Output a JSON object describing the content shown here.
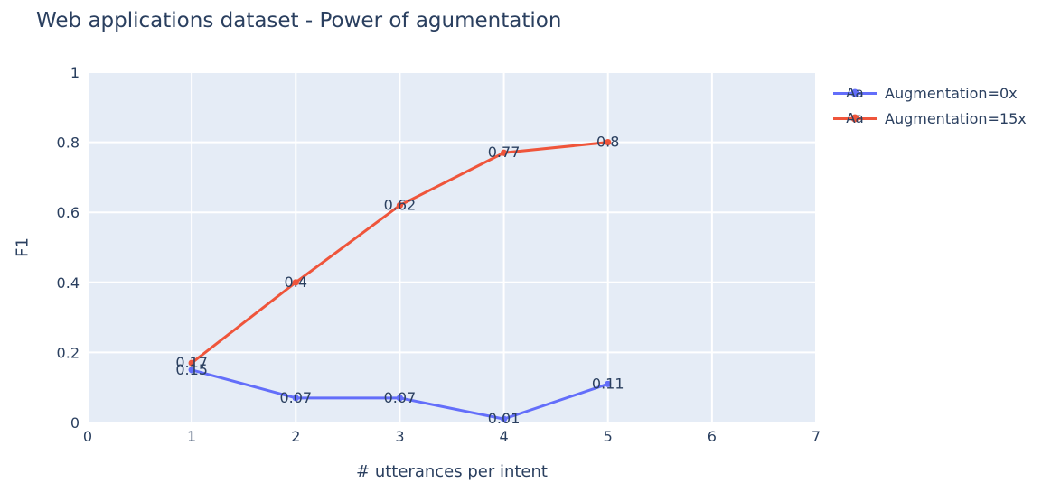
{
  "chart_data": {
    "type": "line",
    "title": "Web applications dataset - Power of agumentation",
    "xlabel": "# utterances per intent",
    "ylabel": "F1",
    "xlim": [
      0,
      7
    ],
    "ylim": [
      0,
      1
    ],
    "xtick_values": [
      0,
      1,
      2,
      3,
      4,
      5,
      6,
      7
    ],
    "xtick_labels": [
      "0",
      "1",
      "2",
      "3",
      "4",
      "5",
      "6",
      "7"
    ],
    "ytick_values": [
      0,
      0.2,
      0.4,
      0.6,
      0.8,
      1
    ],
    "ytick_labels": [
      "0",
      "0.2",
      "0.4",
      "0.6",
      "0.8",
      "1"
    ],
    "x": [
      1,
      2,
      3,
      4,
      5
    ],
    "series": [
      {
        "name": "Augmentation=0x",
        "color": "#636EFA",
        "values": [
          0.15,
          0.07,
          0.07,
          0.01,
          0.11
        ],
        "point_labels": [
          "0.15",
          "0.07",
          "0.07",
          "0.01",
          "0.11"
        ]
      },
      {
        "name": "Augmentation=15x",
        "color": "#EF553B",
        "values": [
          0.17,
          0.4,
          0.62,
          0.77,
          0.8
        ],
        "point_labels": [
          "0.17",
          "0.4",
          "0.62",
          "0.77",
          "0.8"
        ]
      }
    ],
    "legend_marker_text": "Aa",
    "legend_position": "top-right-outside",
    "grid": true,
    "colors": {
      "plot_bg": "#E5ECF6",
      "grid": "#FFFFFF",
      "font": "#2A3F5F",
      "page_bg": "#FFFFFF"
    }
  }
}
